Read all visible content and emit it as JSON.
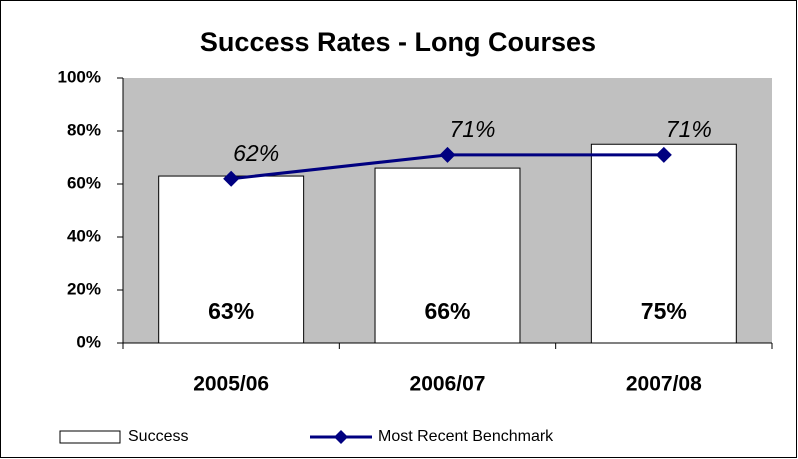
{
  "chart_data": {
    "type": "bar",
    "title": "Success Rates - Long Courses",
    "categories": [
      "2005/06",
      "2006/07",
      "2007/08"
    ],
    "series": [
      {
        "name": "Success",
        "type": "bar",
        "color": "#ffffff",
        "values": [
          63,
          66,
          75
        ],
        "value_labels": [
          "63%",
          "66%",
          "75%"
        ]
      },
      {
        "name": "Most Recent Benchmark",
        "type": "line",
        "color": "#000080",
        "values": [
          62,
          71,
          71
        ],
        "value_labels": [
          "62%",
          "71%",
          "71%"
        ]
      }
    ],
    "ylim": [
      0,
      100
    ],
    "yticks": [
      {
        "value": 0,
        "label": "0%"
      },
      {
        "value": 20,
        "label": "20%"
      },
      {
        "value": 40,
        "label": "40%"
      },
      {
        "value": 60,
        "label": "60%"
      },
      {
        "value": 80,
        "label": "80%"
      },
      {
        "value": 100,
        "label": "100%"
      }
    ],
    "plot_background": "#c0c0c0",
    "legend": "bottom"
  }
}
